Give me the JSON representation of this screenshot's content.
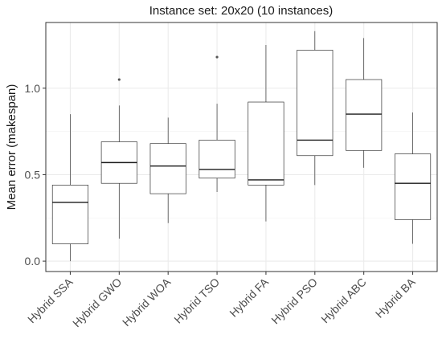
{
  "chart_data": {
    "type": "boxplot",
    "title": "Instance set: 20x20 (10 instances)",
    "xlabel": "",
    "ylabel": "Mean error (makespan)",
    "ylim": [
      -0.06,
      1.38
    ],
    "yticks": [
      0.0,
      0.5,
      1.0
    ],
    "ytick_labels": [
      "0.0",
      "0.5",
      "1.0"
    ],
    "grid": true,
    "colors": {
      "panel_border": "#333333",
      "grid": "#ebebeb",
      "box_line": "#333333",
      "median": "#1a1a1a",
      "outlier": "#555555"
    },
    "categories": [
      "Hybrid SSA",
      "Hybrid GWO",
      "Hybrid WOA",
      "Hybrid TSO",
      "Hybrid FA",
      "Hybrid PSO",
      "Hybrid ABC",
      "Hybrid BA"
    ],
    "boxes": [
      {
        "min": 0.0,
        "q1": 0.1,
        "median": 0.34,
        "q3": 0.44,
        "max": 0.85,
        "outliers": []
      },
      {
        "min": 0.13,
        "q1": 0.45,
        "median": 0.57,
        "q3": 0.69,
        "max": 0.9,
        "outliers": [
          1.05
        ]
      },
      {
        "min": 0.22,
        "q1": 0.39,
        "median": 0.55,
        "q3": 0.68,
        "max": 0.83,
        "outliers": []
      },
      {
        "min": 0.4,
        "q1": 0.48,
        "median": 0.53,
        "q3": 0.7,
        "max": 0.91,
        "outliers": [
          1.18
        ]
      },
      {
        "min": 0.23,
        "q1": 0.44,
        "median": 0.47,
        "q3": 0.92,
        "max": 1.25,
        "outliers": []
      },
      {
        "min": 0.44,
        "q1": 0.61,
        "median": 0.7,
        "q3": 1.22,
        "max": 1.33,
        "outliers": []
      },
      {
        "min": 0.54,
        "q1": 0.64,
        "median": 0.85,
        "q3": 1.05,
        "max": 1.29,
        "outliers": []
      },
      {
        "min": 0.1,
        "q1": 0.24,
        "median": 0.45,
        "q3": 0.62,
        "max": 0.86,
        "outliers": []
      }
    ]
  }
}
